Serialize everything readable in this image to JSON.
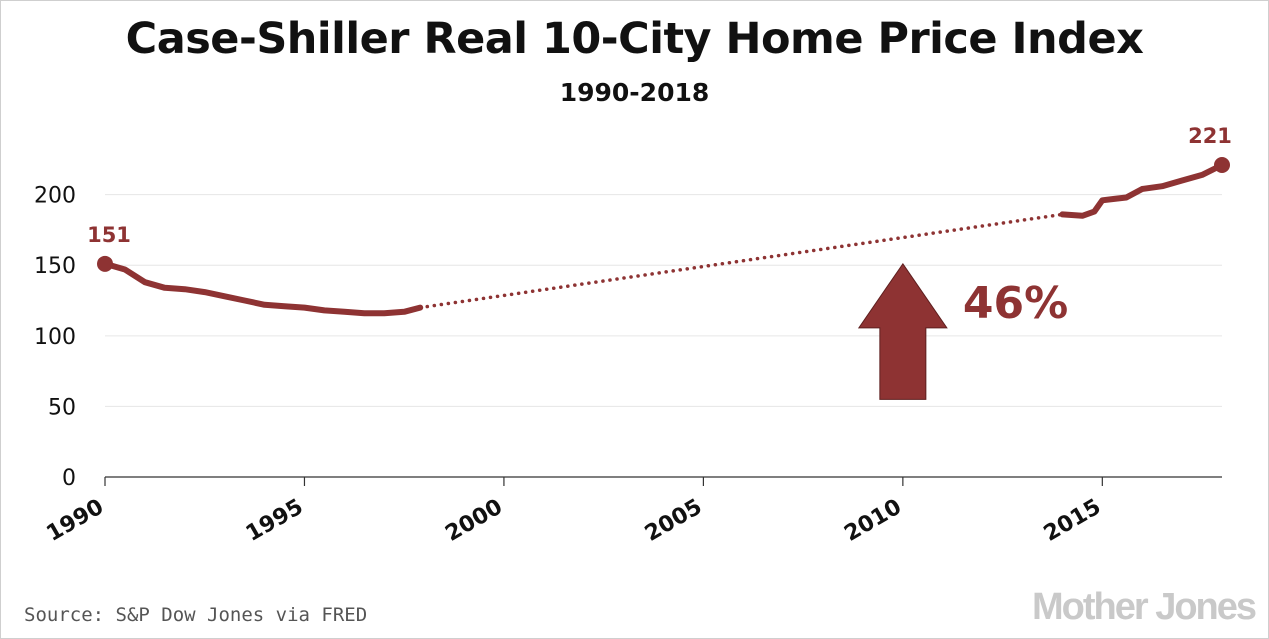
{
  "header": {
    "title": "Case-Shiller Real 10-City Home Price Index",
    "subtitle": "1990-2018"
  },
  "footer": {
    "source": "Source: S&P Dow Jones via FRED",
    "brand": "Mother Jones"
  },
  "colors": {
    "series": "#8e3333",
    "grid": "#e6e6e6",
    "axis": "#333333"
  },
  "chart_data": {
    "type": "line",
    "title": "Case-Shiller Real 10-City Home Price Index",
    "subtitle": "1990-2018",
    "xlabel": "",
    "ylabel": "",
    "xlim": [
      1990,
      2018
    ],
    "ylim": [
      0,
      221
    ],
    "grid": true,
    "y_ticks": [
      0,
      50,
      100,
      150,
      200
    ],
    "x_ticks": [
      1990,
      1995,
      2000,
      2005,
      2010,
      2015
    ],
    "series": [
      {
        "style": "solid",
        "x": [
          1990.0,
          1990.5,
          1991.0,
          1991.5,
          1992.0,
          1992.5,
          1993.0,
          1993.5,
          1994.0,
          1994.5,
          1995.0,
          1995.5,
          1996.0,
          1996.5,
          1997.0,
          1997.5,
          1997.9
        ],
        "y": [
          151,
          147,
          138,
          134,
          133,
          131,
          128,
          125,
          122,
          121,
          120,
          118,
          117,
          116,
          116,
          117,
          120
        ]
      },
      {
        "style": "dotted",
        "x": [
          1997.9,
          2014.0
        ],
        "y": [
          120,
          186
        ]
      },
      {
        "style": "solid",
        "x": [
          2014.0,
          2014.5,
          2014.8,
          2015.0,
          2015.3,
          2015.6,
          2016.0,
          2016.5,
          2017.0,
          2017.5,
          2018.0
        ],
        "y": [
          186,
          185,
          188,
          196,
          197,
          198,
          204,
          206,
          210,
          214,
          221
        ]
      }
    ],
    "end_labels": [
      {
        "x": 1990.0,
        "y": 151,
        "text": "151"
      },
      {
        "x": 2018.0,
        "y": 221,
        "text": "221"
      }
    ],
    "annotation": {
      "text": "46%",
      "arrow_x": 2010.0,
      "arrow_y_from": 55,
      "arrow_y_to": 151
    }
  }
}
